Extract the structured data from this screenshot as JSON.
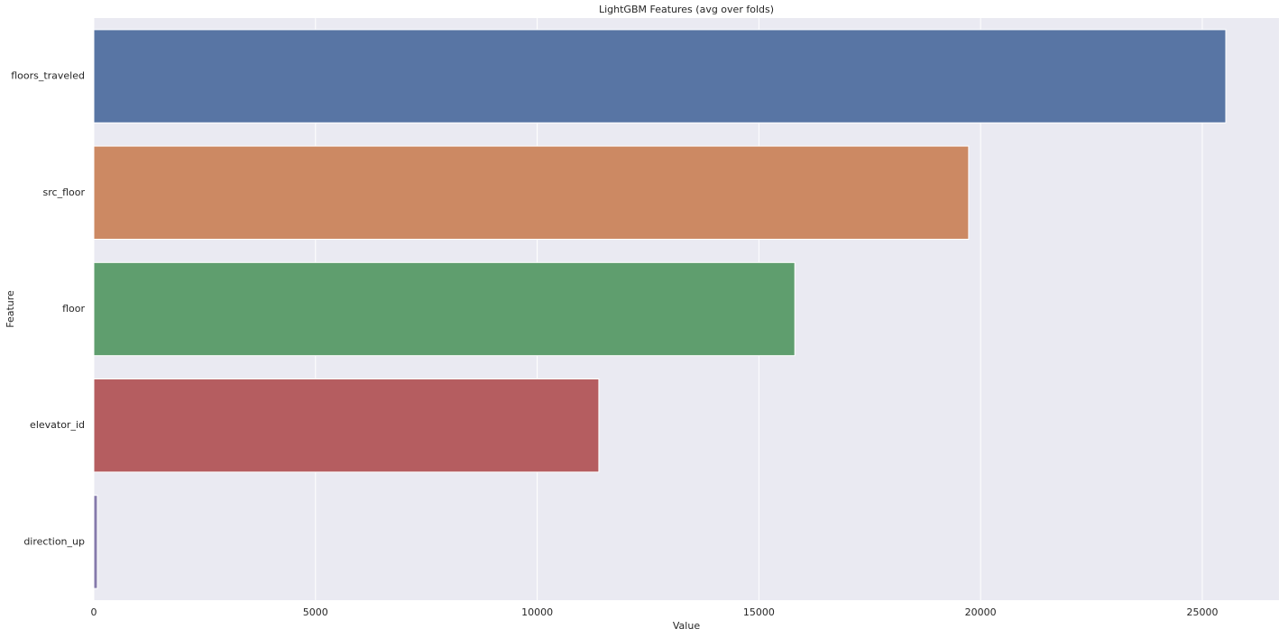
{
  "chart_data": {
    "type": "bar",
    "orientation": "horizontal",
    "title": "LightGBM Features (avg over folds)",
    "xlabel": "Value",
    "ylabel": "Feature",
    "categories": [
      "floors_traveled",
      "src_floor",
      "floor",
      "elevator_id",
      "direction_up"
    ],
    "values": [
      25530,
      19730,
      15810,
      11390,
      80
    ],
    "colors": [
      "#5875a4",
      "#cc8963",
      "#5f9e6e",
      "#b55d60",
      "#857aab"
    ],
    "xlim": [
      0,
      26730
    ],
    "xticks": [
      0,
      5000,
      10000,
      15000,
      20000,
      25000
    ],
    "grid": true
  }
}
